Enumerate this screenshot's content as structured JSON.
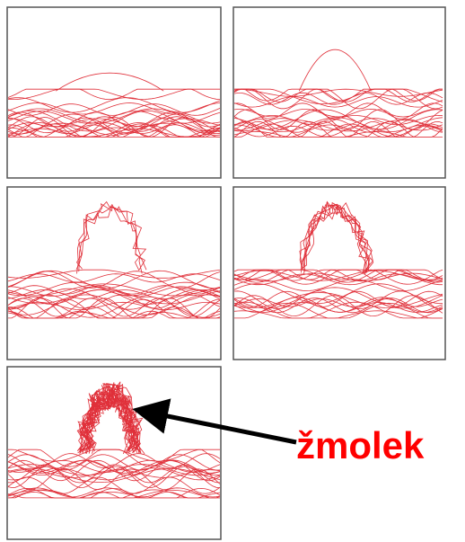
{
  "label": "žmolek"
}
